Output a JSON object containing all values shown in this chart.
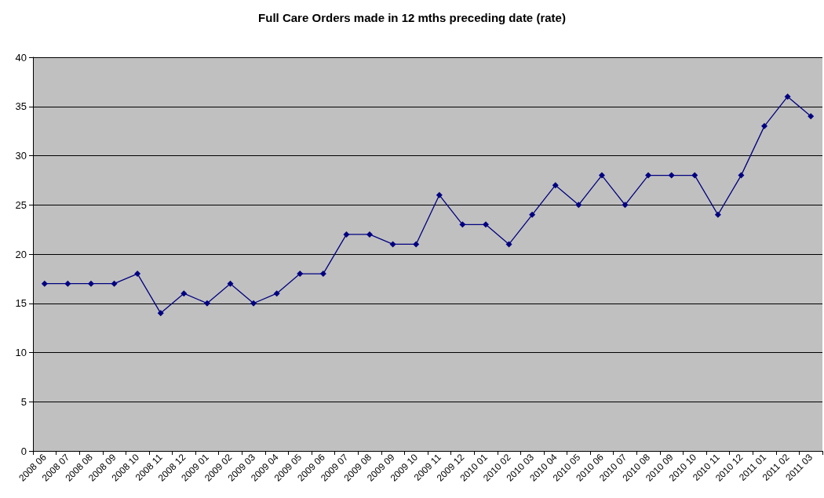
{
  "chart_data": {
    "type": "line",
    "title": "Full Care Orders made in 12 mths preceding date (rate)",
    "categories": [
      "2008 06",
      "2008 07",
      "2008 08",
      "2008 09",
      "2008 10",
      "2008 11",
      "2008 12",
      "2009 01",
      "2009 02",
      "2009 03",
      "2009 04",
      "2009 05",
      "2009 06",
      "2009 07",
      "2009 08",
      "2009 09",
      "2009 10",
      "2009 11",
      "2009 12",
      "2010 01",
      "2010 02",
      "2010 03",
      "2010 04",
      "2010 05",
      "2010 06",
      "2010 07",
      "2010 08",
      "2010 09",
      "2010 10",
      "2010 11",
      "2010 12",
      "2011 01",
      "2011 02",
      "2011 03"
    ],
    "series": [
      {
        "color": "#000080",
        "values": [
          17,
          17,
          17,
          17,
          18,
          14,
          16,
          15,
          17,
          15,
          16,
          18,
          18,
          22,
          22,
          21,
          21,
          26,
          23,
          23,
          21,
          24,
          27,
          25,
          28,
          25,
          28,
          28,
          28,
          24,
          28,
          33,
          36,
          34
        ]
      }
    ],
    "ylim": [
      0,
      40
    ],
    "yticks": [
      0,
      5,
      10,
      15,
      20,
      25,
      30,
      35,
      40
    ],
    "grid": "y",
    "marker": "diamond",
    "line_style": "solid"
  }
}
